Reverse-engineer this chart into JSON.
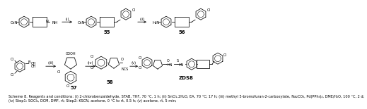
{
  "bg": "#ffffff",
  "lw": 0.55,
  "fs_label": 4.0,
  "fs_num": 5.0,
  "fs_caption": 3.6,
  "caption": "Scheme 8. Reagents and conditions: (i) 2-chlorobenzaldehyde, STAB, THF, 70 °C, 1 h; (ii) SnCl₂.2H₂O, EA, 70 °C; 17 h; (iii) methyl 5-bromofuran-2-carboxylate, Na₂CO₃, Pd(PPh₃)₄, DME/H₂O, 100 °C, 2 d; (iv) Step1: SOCl₂, DCM, DMF, rt; Step2: KSCN, acetone, 0 °C to rt, 0.5 h; (v) acetone, rt, 5 min;"
}
